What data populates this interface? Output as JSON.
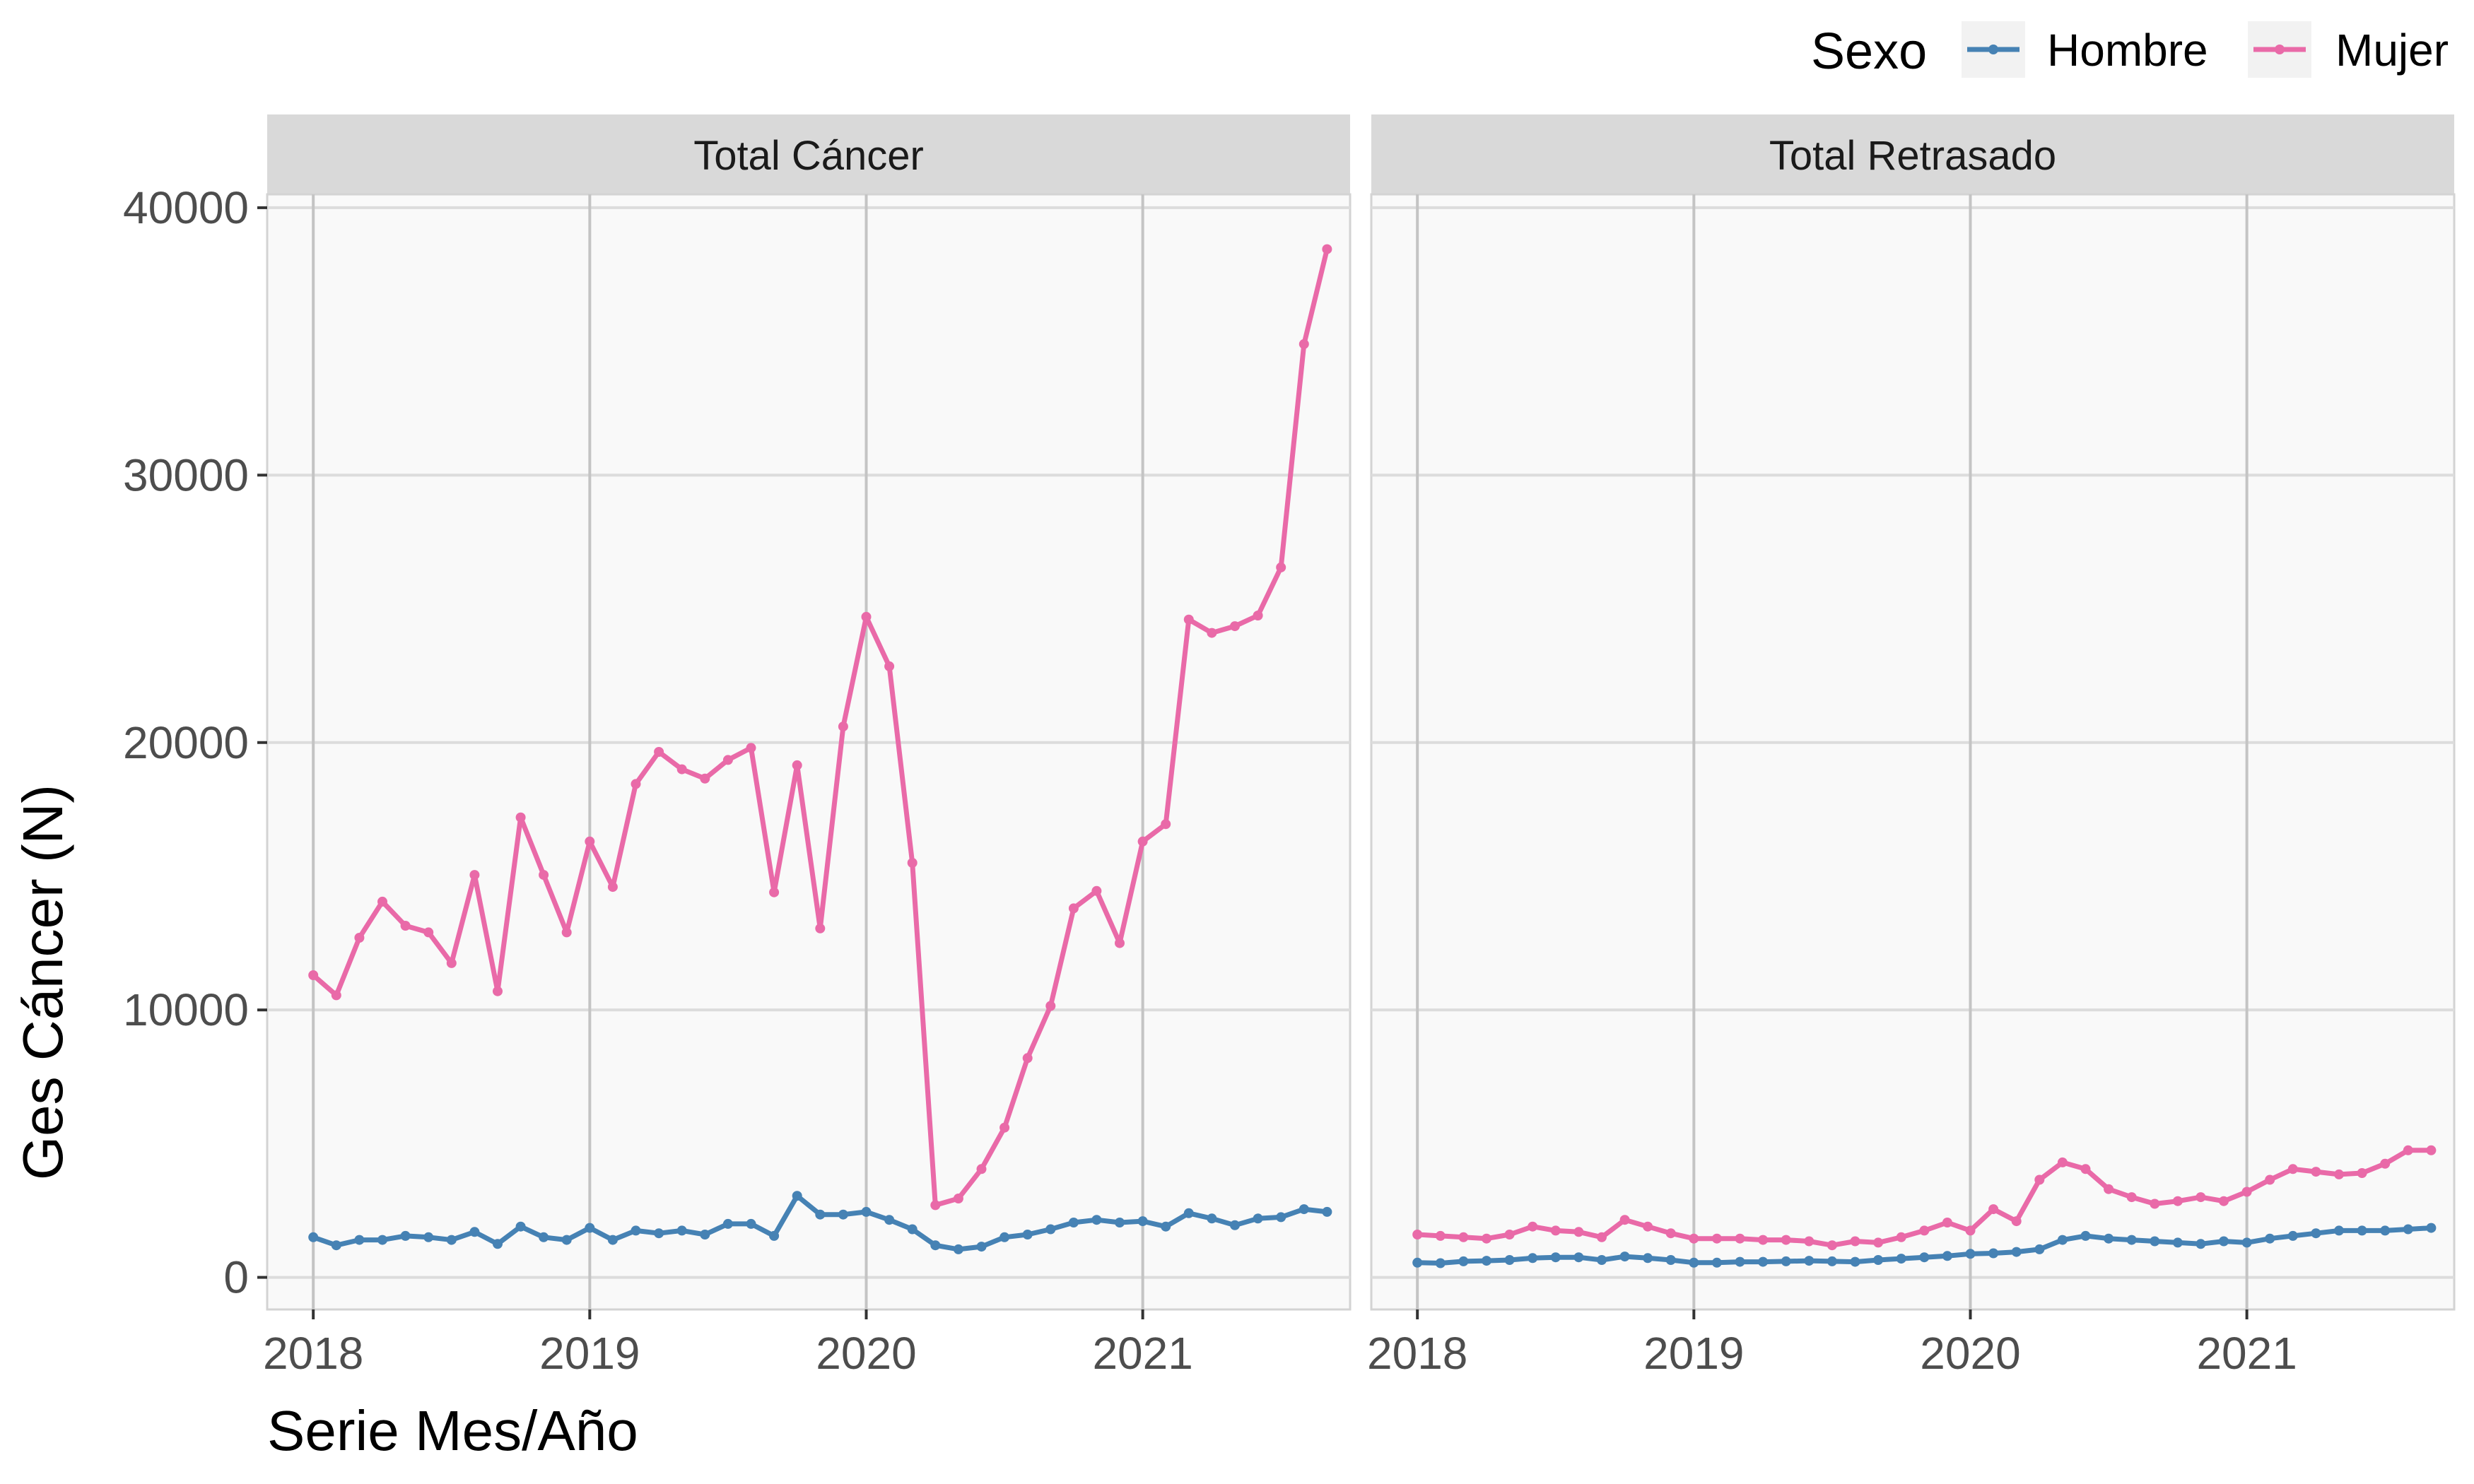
{
  "chart_data": {
    "type": "line",
    "xlabel": "Serie Mes/Año",
    "ylabel": "Ges Cáncer (N)",
    "x_ticks": [
      "2018",
      "2019",
      "2020",
      "2021"
    ],
    "y_ticks": [
      "0",
      "10000",
      "20000",
      "30000",
      "40000"
    ],
    "ylim": [
      -1200,
      40500
    ],
    "xlim": [
      "2017-11",
      "2021-10"
    ],
    "grid": true,
    "legend": {
      "title": "Sexo",
      "position": "top-right",
      "entries": [
        {
          "label": "Hombre",
          "color": "#4682b4"
        },
        {
          "label": "Mujer",
          "color": "#e96aa8"
        }
      ]
    },
    "x": [
      "2018-01",
      "2018-02",
      "2018-03",
      "2018-04",
      "2018-05",
      "2018-06",
      "2018-07",
      "2018-08",
      "2018-09",
      "2018-10",
      "2018-11",
      "2018-12",
      "2019-01",
      "2019-02",
      "2019-03",
      "2019-04",
      "2019-05",
      "2019-06",
      "2019-07",
      "2019-08",
      "2019-09",
      "2019-10",
      "2019-11",
      "2019-12",
      "2020-01",
      "2020-02",
      "2020-03",
      "2020-04",
      "2020-05",
      "2020-06",
      "2020-07",
      "2020-08",
      "2020-09",
      "2020-10",
      "2020-11",
      "2020-12",
      "2021-01",
      "2021-02",
      "2021-03",
      "2021-04",
      "2021-05",
      "2021-06",
      "2021-07",
      "2021-08",
      "2021-09"
    ],
    "panels": [
      {
        "title": "Total Cáncer",
        "series": [
          {
            "name": "Hombre",
            "color": "#4682b4",
            "values": [
              1500,
              1200,
              1400,
              1400,
              1550,
              1500,
              1400,
              1700,
              1250,
              1900,
              1500,
              1400,
              1850,
              1400,
              1750,
              1650,
              1750,
              1600,
              2000,
              2000,
              1550,
              3050,
              2350,
              2350,
              2450,
              2150,
              1800,
              1200,
              1050,
              1150,
              1500,
              1600,
              1800,
              2050,
              2150,
              2050,
              2100,
              1900,
              2400,
              2200,
              1950,
              2200,
              2250,
              2550,
              2450
            ]
          },
          {
            "name": "Mujer",
            "color": "#e96aa8",
            "values": [
              11300,
              10550,
              12700,
              14050,
              13150,
              12900,
              11750,
              15050,
              10700,
              17200,
              15050,
              12900,
              16300,
              14600,
              18450,
              19650,
              19000,
              18650,
              19350,
              19800,
              14400,
              19150,
              13050,
              20600,
              24700,
              22850,
              15500,
              2700,
              2950,
              4050,
              5600,
              8200,
              10150,
              13800,
              14450,
              12500,
              16300,
              16950,
              24600,
              24100,
              24350,
              24750,
              26550,
              34900,
              38450
            ]
          }
        ]
      },
      {
        "title": "Total Retrasado",
        "series": [
          {
            "name": "Hombre",
            "color": "#4682b4",
            "values": [
              550,
              530,
              600,
              620,
              650,
              720,
              750,
              750,
              650,
              780,
              720,
              650,
              550,
              550,
              580,
              580,
              600,
              620,
              600,
              580,
              650,
              700,
              750,
              800,
              880,
              900,
              950,
              1050,
              1400,
              1550,
              1450,
              1400,
              1350,
              1300,
              1250,
              1350,
              1300,
              1450,
              1550,
              1650,
              1750,
              1750,
              1750,
              1800,
              1850
            ]
          },
          {
            "name": "Mujer",
            "color": "#e96aa8",
            "values": [
              1600,
              1550,
              1500,
              1450,
              1600,
              1900,
              1750,
              1700,
              1500,
              2150,
              1900,
              1650,
              1450,
              1450,
              1450,
              1400,
              1400,
              1350,
              1200,
              1350,
              1300,
              1500,
              1750,
              2050,
              1750,
              2550,
              2100,
              3650,
              4300,
              4050,
              3300,
              3000,
              2750,
              2850,
              3000,
              2850,
              3200,
              3650,
              4050,
              3950,
              3850,
              3900,
              4250,
              4750,
              4750
            ]
          }
        ]
      }
    ]
  }
}
